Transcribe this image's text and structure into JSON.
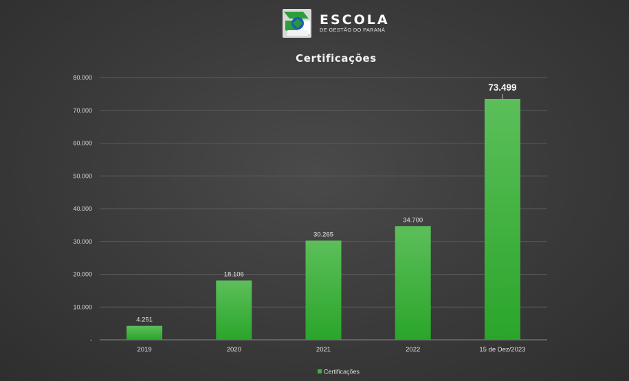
{
  "header": {
    "logo_word": "ESCOLA",
    "logo_subtitle": "DE GESTÃO DO PARANÁ"
  },
  "colors": {
    "bar_top": "#5cbf5a",
    "bar_bottom": "#2aa52a",
    "logo_green": "#2e9e3a",
    "logo_blue": "#1a5fa8"
  },
  "icons": [
    "escola-logo-icon"
  ],
  "chart_data": {
    "type": "bar",
    "title": "Certificações",
    "categories": [
      "2019",
      "2020",
      "2021",
      "2022",
      "15 de Dez/2023"
    ],
    "series": [
      {
        "name": "Certificações",
        "values": [
          4251,
          18106,
          30265,
          34700,
          73499
        ]
      }
    ],
    "data_labels": [
      "4.251",
      "18.106",
      "30.265",
      "34.700",
      "73.499"
    ],
    "ylim": [
      0,
      80000
    ],
    "yticks": [
      {
        "value": 0,
        "label": "-"
      },
      {
        "value": 10000,
        "label": "10.000"
      },
      {
        "value": 20000,
        "label": "20.000"
      },
      {
        "value": 30000,
        "label": "30.000"
      },
      {
        "value": 40000,
        "label": "40.000"
      },
      {
        "value": 50000,
        "label": "50.000"
      },
      {
        "value": 60000,
        "label": "60.000"
      },
      {
        "value": 70000,
        "label": "70.000"
      },
      {
        "value": 80000,
        "label": "80.000"
      }
    ],
    "grid": true,
    "legend": {
      "position": "bottom",
      "entries": [
        "Certificações"
      ]
    }
  }
}
